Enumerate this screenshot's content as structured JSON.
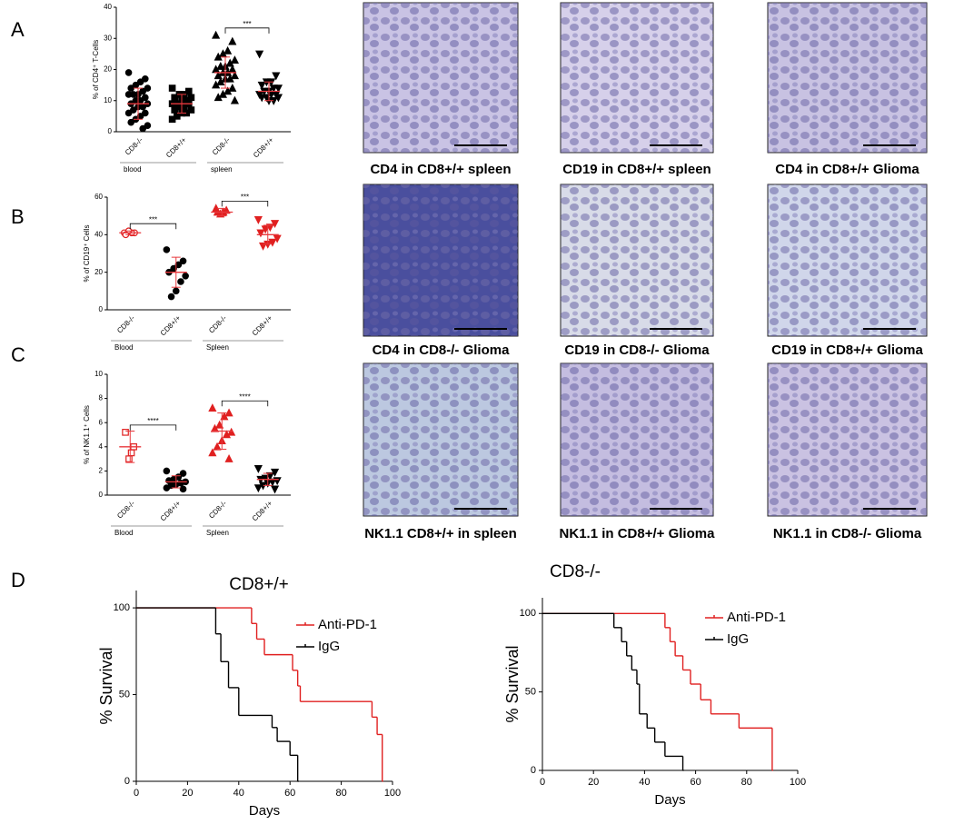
{
  "panel_labels": [
    "A",
    "B",
    "C",
    "D"
  ],
  "micrographs": [
    {
      "caption": "CD4 in CD8+/+ spleen"
    },
    {
      "caption": "CD19 in CD8+/+  spleen"
    },
    {
      "caption": "CD4 in CD8+/+ Glioma"
    },
    {
      "caption": "CD4 in CD8-/- Glioma"
    },
    {
      "caption": "CD19 in CD8-/- Glioma"
    },
    {
      "caption": "CD19 in CD8+/+ Glioma"
    },
    {
      "caption": "NK1.1 CD8+/+ in spleen"
    },
    {
      "caption": "NK1.1 in CD8+/+ Glioma"
    },
    {
      "caption": "NK1.1 in CD8-/- Glioma"
    }
  ],
  "chart_data": [
    {
      "type": "dotplot",
      "ylabel": "% of CD4⁺ T-Cells",
      "ylim": [
        0,
        40
      ],
      "yticks": [
        0,
        10,
        20,
        30,
        40
      ],
      "cohorts": [
        "blood",
        "spleen"
      ],
      "groups": [
        {
          "category": "CD8-/-",
          "marker": "circle",
          "filled": true,
          "color": "#000000",
          "mean": 9,
          "sd": 5,
          "values": [
            19,
            17,
            16,
            15,
            14,
            14,
            13,
            12,
            12,
            12,
            11,
            10,
            10,
            9,
            9,
            8,
            8,
            7,
            6,
            6,
            5,
            4,
            3,
            2,
            1
          ]
        },
        {
          "category": "CD8+/+",
          "marker": "square",
          "filled": true,
          "color": "#000000",
          "mean": 9,
          "sd": 3,
          "values": [
            14,
            13,
            12,
            12,
            11,
            11,
            10,
            10,
            9,
            9,
            9,
            8,
            8,
            7,
            7,
            6,
            6,
            5,
            4
          ]
        },
        {
          "category": "CD8-/-",
          "marker": "triangle",
          "filled": true,
          "color": "#000000",
          "mean": 19,
          "sd": 5,
          "values": [
            31,
            29,
            26,
            25,
            24,
            23,
            22,
            21,
            21,
            20,
            20,
            19,
            19,
            18,
            18,
            17,
            17,
            16,
            15,
            14,
            13,
            12,
            11,
            10
          ]
        },
        {
          "category": "CD8+/+",
          "marker": "triangle-down",
          "filled": true,
          "color": "#000000",
          "mean": 13,
          "sd": 3,
          "significance": "***",
          "values": [
            25,
            18,
            16,
            16,
            15,
            14,
            14,
            13,
            13,
            12,
            12,
            12,
            11,
            11,
            11,
            10,
            10
          ]
        }
      ],
      "stat_color": "#e8383d"
    },
    {
      "type": "dotplot",
      "ylabel": "% of CD19⁺ Cells",
      "ylim": [
        0,
        60
      ],
      "yticks": [
        0,
        20,
        40,
        60
      ],
      "cohorts": [
        "Blood",
        "Spleen"
      ],
      "groups": [
        {
          "category": "CD8-/-",
          "marker": "circle",
          "filled": false,
          "color": "#e02020",
          "mean": 41,
          "sd": 1,
          "values": [
            41,
            41,
            41,
            42,
            40
          ]
        },
        {
          "category": "CD8+/+",
          "marker": "circle",
          "filled": true,
          "color": "#000000",
          "mean": 20,
          "sd": 8,
          "significance": "***",
          "values": [
            32,
            26,
            24,
            22,
            20,
            18,
            15,
            10,
            7
          ]
        },
        {
          "category": "CD8-/-",
          "marker": "triangle",
          "filled": true,
          "color": "#e02020",
          "mean": 52,
          "sd": 2,
          "values": [
            54,
            53,
            52,
            51,
            52
          ]
        },
        {
          "category": "CD8+/+",
          "marker": "triangle-down",
          "filled": true,
          "color": "#e02020",
          "mean": 40,
          "sd": 5,
          "significance": "***",
          "values": [
            48,
            46,
            44,
            43,
            41,
            38,
            36,
            35,
            34
          ]
        }
      ],
      "stat_color": "#e8383d"
    },
    {
      "type": "dotplot",
      "ylabel": "% of NK1.1⁺ Cells",
      "ylim": [
        0,
        10
      ],
      "yticks": [
        0,
        2,
        4,
        6,
        8,
        10
      ],
      "cohorts": [
        "Blood",
        "Spleen"
      ],
      "groups": [
        {
          "category": "CD8-/-",
          "marker": "square",
          "filled": false,
          "color": "#e02020",
          "mean": 4,
          "sd": 1.3,
          "values": [
            5.2,
            4.0,
            3.5,
            3.0
          ]
        },
        {
          "category": "CD8+/+",
          "marker": "circle",
          "filled": true,
          "color": "#000000",
          "mean": 1.1,
          "sd": 0.5,
          "significance": "****",
          "values": [
            2.0,
            1.8,
            1.5,
            1.3,
            1.2,
            1.1,
            1.0,
            0.9,
            0.8,
            0.6,
            0.5
          ]
        },
        {
          "category": "CD8-/-",
          "marker": "triangle",
          "filled": true,
          "color": "#e02020",
          "mean": 5.3,
          "sd": 1.5,
          "values": [
            7.2,
            6.8,
            6.5,
            5.8,
            5.5,
            5.2,
            5.0,
            4.5,
            4.0,
            3.5,
            3.0
          ]
        },
        {
          "category": "CD8+/+",
          "marker": "triangle-down",
          "filled": true,
          "color": "#000000",
          "mean": 1.3,
          "sd": 0.5,
          "significance": "****",
          "values": [
            2.2,
            1.9,
            1.6,
            1.4,
            1.3,
            1.2,
            1.1,
            1.0,
            0.8,
            0.6,
            0.5
          ]
        }
      ],
      "stat_color": "#e8383d"
    },
    {
      "type": "survival",
      "title": "CD8+/+",
      "xlabel": "Days",
      "ylabel": "% Survival",
      "xlim": [
        0,
        100
      ],
      "xticks": [
        0,
        20,
        40,
        60,
        80,
        100
      ],
      "ylim": [
        0,
        110
      ],
      "yticks": [
        0,
        50,
        100
      ],
      "series": [
        {
          "name": "Anti-PD-1",
          "color": "#e02020",
          "x": [
            0,
            45,
            47,
            50,
            61,
            63,
            64,
            92,
            94,
            96
          ],
          "values": [
            100,
            91,
            82,
            73,
            64,
            55,
            46,
            37,
            27,
            0
          ]
        },
        {
          "name": "IgG",
          "color": "#000000",
          "x": [
            0,
            31,
            33,
            36,
            40,
            53,
            55,
            60,
            63
          ],
          "values": [
            100,
            85,
            69,
            54,
            38,
            31,
            23,
            15,
            0
          ]
        }
      ]
    },
    {
      "type": "survival",
      "title": "CD8-/-",
      "xlabel": "Days",
      "ylabel": "% Survival",
      "xlim": [
        0,
        100
      ],
      "xticks": [
        0,
        20,
        40,
        60,
        80,
        100
      ],
      "ylim": [
        0,
        110
      ],
      "yticks": [
        0,
        50,
        100
      ],
      "series": [
        {
          "name": "Anti-PD-1",
          "color": "#e02020",
          "x": [
            0,
            48,
            50,
            52,
            55,
            58,
            62,
            66,
            77,
            90
          ],
          "values": [
            100,
            91,
            82,
            73,
            64,
            55,
            45,
            36,
            27,
            0
          ]
        },
        {
          "name": "IgG",
          "color": "#000000",
          "x": [
            0,
            28,
            31,
            33,
            35,
            37,
            38,
            41,
            44,
            48,
            55
          ],
          "values": [
            100,
            91,
            82,
            73,
            64,
            55,
            36,
            27,
            18,
            9,
            0
          ]
        }
      ]
    }
  ]
}
